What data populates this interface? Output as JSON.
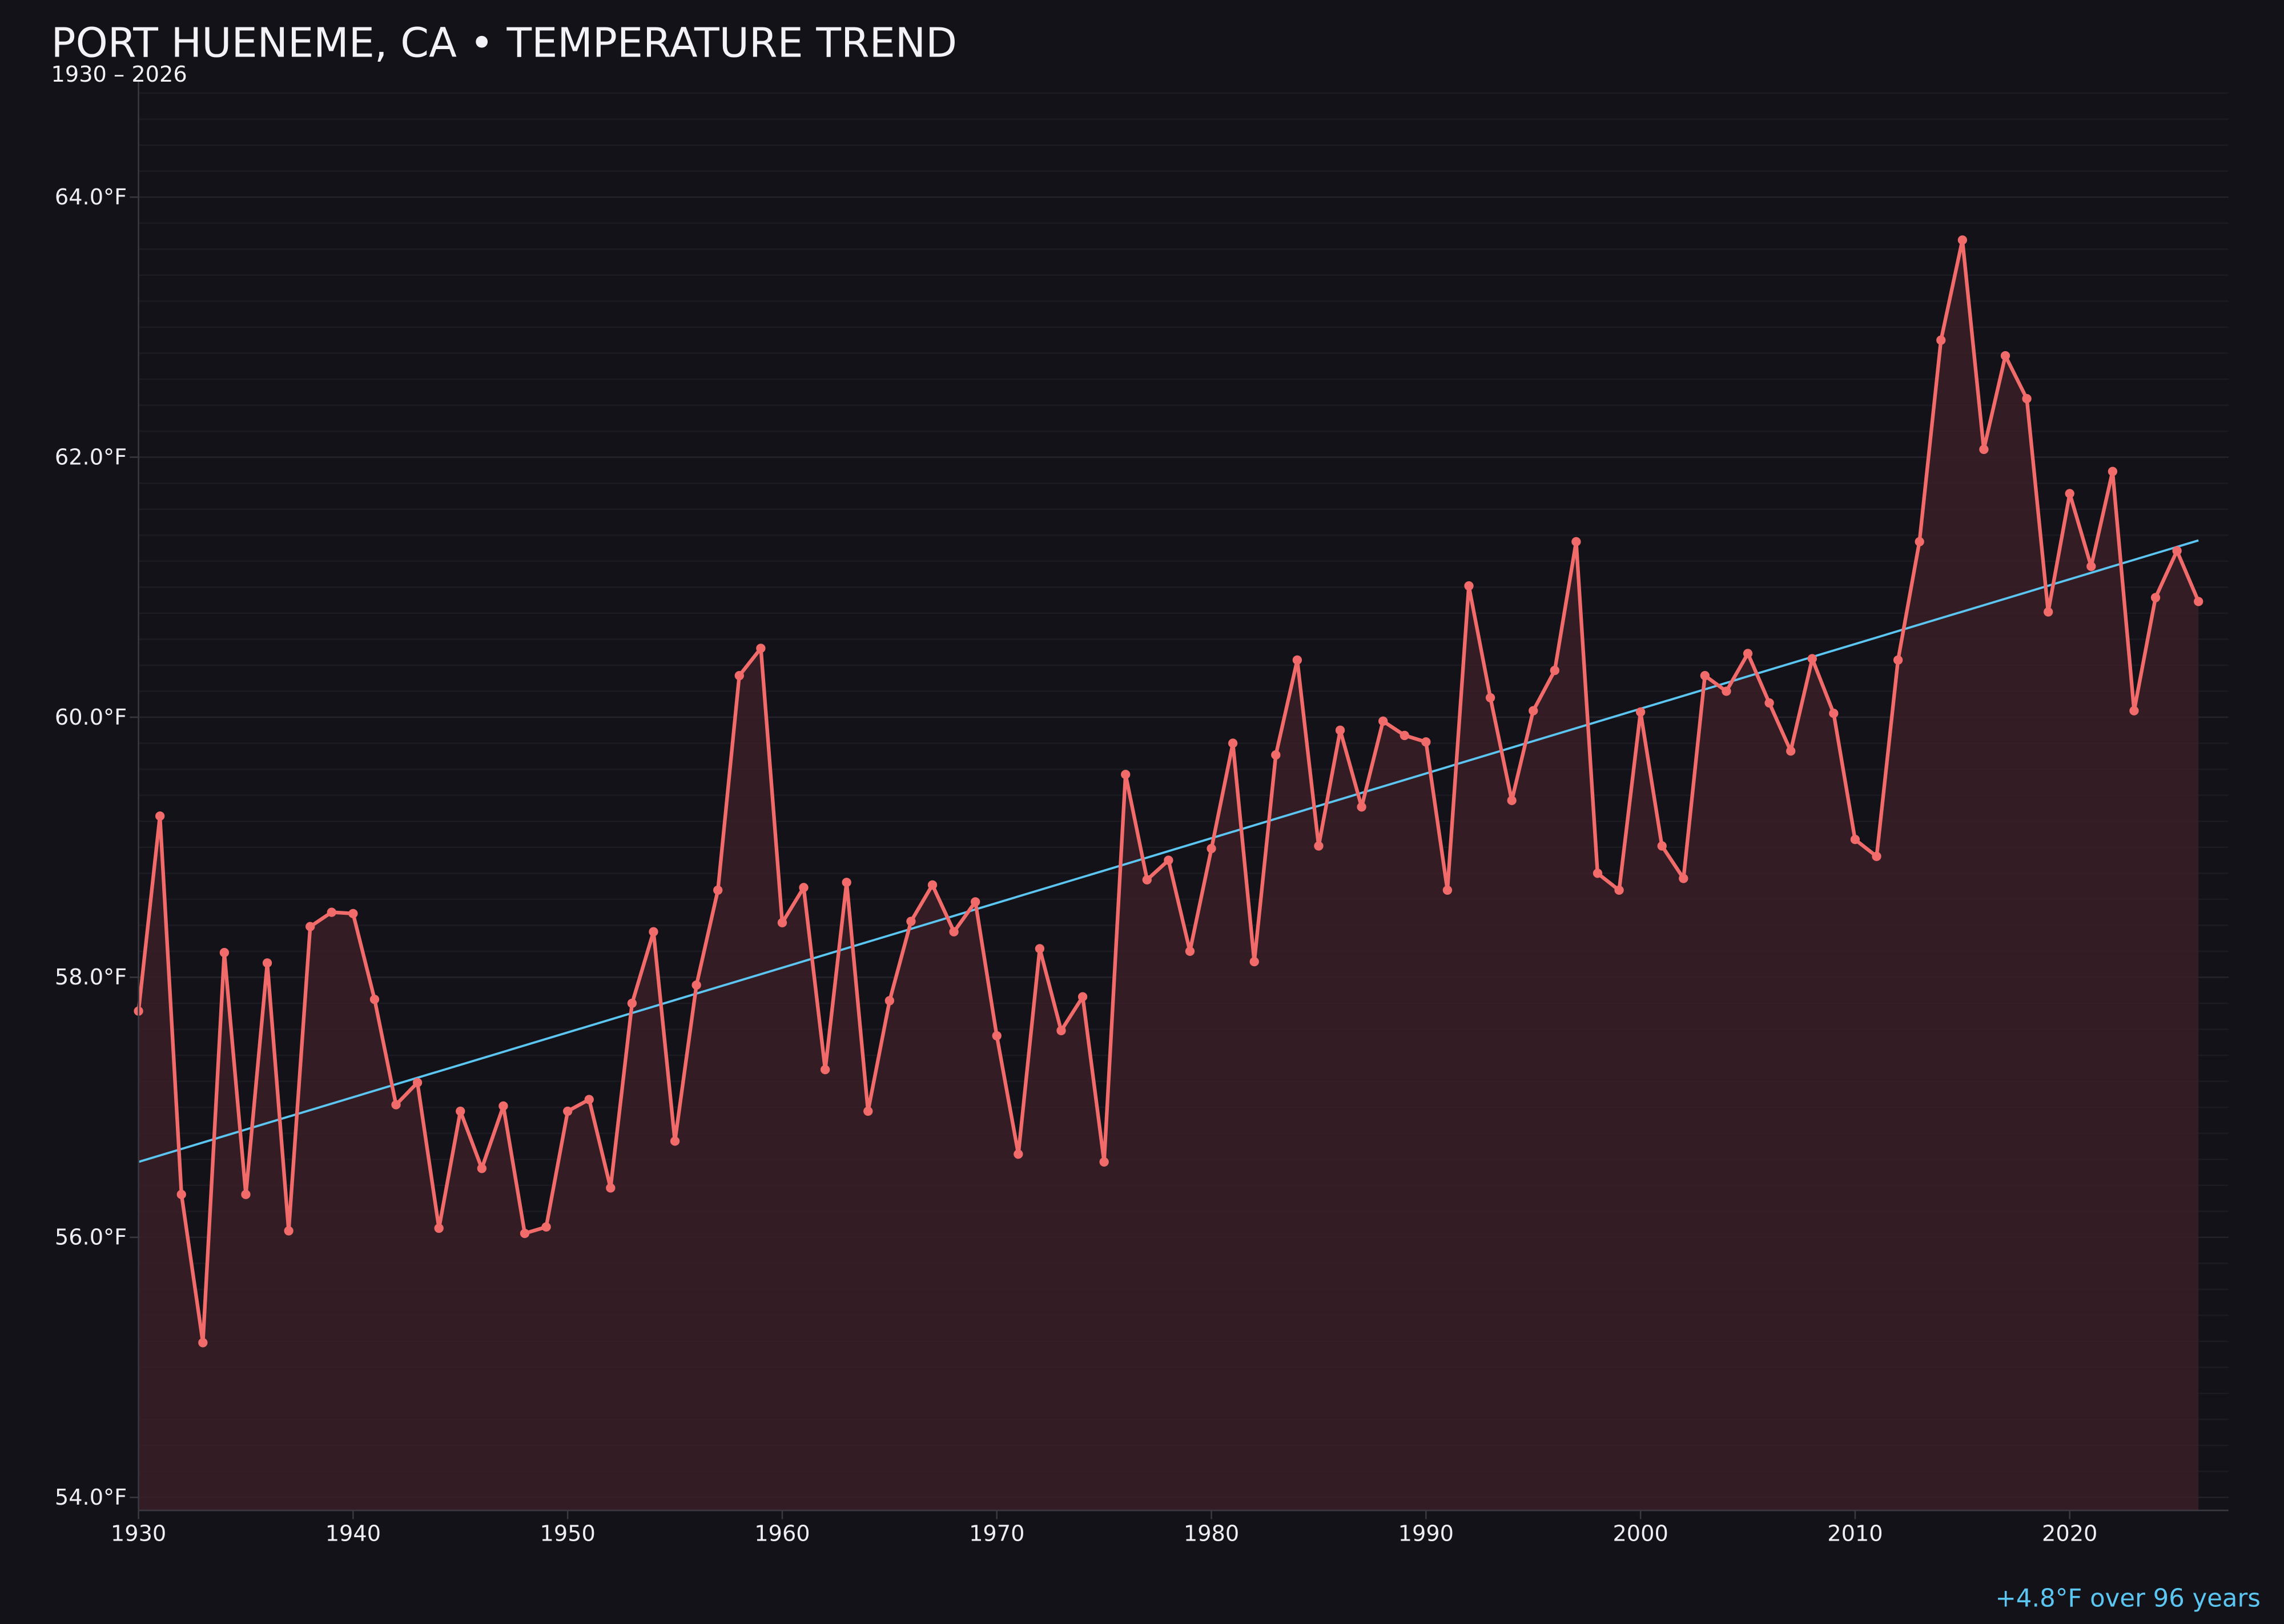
{
  "chart_data": {
    "type": "line",
    "title": "PORT HUENEME, CA • TEMPERATURE TREND",
    "subtitle": "1930 – 2026",
    "annotation": "+4.8°F over 96 years",
    "xlabel": "",
    "ylabel": "",
    "xlim": [
      1930,
      2027.4
    ],
    "ylim": [
      53.9,
      64.9
    ],
    "grid": true,
    "x_ticks": [
      "1930",
      "1940",
      "1950",
      "1960",
      "1970",
      "1980",
      "1990",
      "2000",
      "2010",
      "2020"
    ],
    "y_ticks": [
      "54.0°F",
      "56.0°F",
      "58.0°F",
      "60.0°F",
      "62.0°F",
      "64.0°F"
    ],
    "y_tick_values": [
      54,
      56,
      58,
      60,
      62,
      64
    ],
    "x_tick_values": [
      1930,
      1940,
      1950,
      1960,
      1970,
      1980,
      1990,
      2000,
      2010,
      2020
    ],
    "colors": {
      "background": "#131218",
      "line": "#f26b6b",
      "fill": "#3a1f26",
      "trend": "#5cc6f2",
      "text": "#eeeef4",
      "grid": "#24222a"
    },
    "series": [
      {
        "x": [
          1930,
          1931,
          1932,
          1933,
          1934,
          1935,
          1936,
          1937,
          1938,
          1939,
          1940,
          1941,
          1942,
          1943,
          1944,
          1945,
          1946,
          1947,
          1948,
          1949,
          1950,
          1951,
          1952,
          1953,
          1954,
          1955,
          1956,
          1957,
          1958,
          1959,
          1960,
          1961,
          1962,
          1963,
          1964,
          1965,
          1966,
          1967,
          1968,
          1969,
          1970,
          1971,
          1972,
          1973,
          1974,
          1975,
          1976,
          1977,
          1978,
          1979,
          1980,
          1981,
          1982,
          1983,
          1984,
          1985,
          1986,
          1987,
          1988,
          1989,
          1990,
          1991,
          1992,
          1993,
          1994,
          1995,
          1996,
          1997,
          1998,
          1999,
          2000,
          2001,
          2002,
          2003,
          2004,
          2005,
          2006,
          2007,
          2008,
          2009,
          2010,
          2011,
          2012,
          2013,
          2014,
          2015,
          2016,
          2017,
          2018,
          2019,
          2020,
          2021,
          2022,
          2023,
          2024,
          2025,
          2026
        ],
        "values": [
          57.74,
          59.24,
          56.33,
          55.19,
          58.19,
          56.33,
          58.11,
          56.05,
          58.39,
          58.5,
          58.49,
          57.83,
          57.02,
          57.19,
          56.07,
          56.97,
          56.53,
          57.01,
          56.03,
          56.08,
          56.97,
          57.06,
          56.38,
          57.8,
          58.35,
          56.74,
          57.94,
          58.67,
          60.32,
          60.53,
          58.42,
          58.69,
          57.29,
          58.73,
          56.97,
          57.82,
          58.43,
          58.71,
          58.35,
          58.58,
          57.55,
          56.64,
          58.22,
          57.59,
          57.85,
          56.58,
          59.56,
          58.75,
          58.9,
          58.2,
          58.99,
          59.8,
          58.12,
          59.71,
          60.44,
          59.01,
          59.9,
          59.31,
          59.97,
          59.86,
          59.81,
          58.67,
          61.01,
          60.15,
          59.36,
          60.05,
          60.36,
          61.35,
          58.8,
          58.67,
          60.04,
          59.01,
          58.76,
          60.32,
          60.2,
          60.49,
          60.11,
          59.74,
          60.45,
          60.03,
          59.06,
          58.93,
          60.44,
          61.35,
          62.9,
          63.67,
          62.06,
          62.78,
          62.45,
          60.81,
          61.72,
          61.16,
          61.89,
          60.05,
          60.92,
          61.28,
          60.89
        ]
      }
    ],
    "trend": {
      "x": [
        1930,
        2026
      ],
      "values": [
        56.58,
        61.36
      ]
    }
  }
}
